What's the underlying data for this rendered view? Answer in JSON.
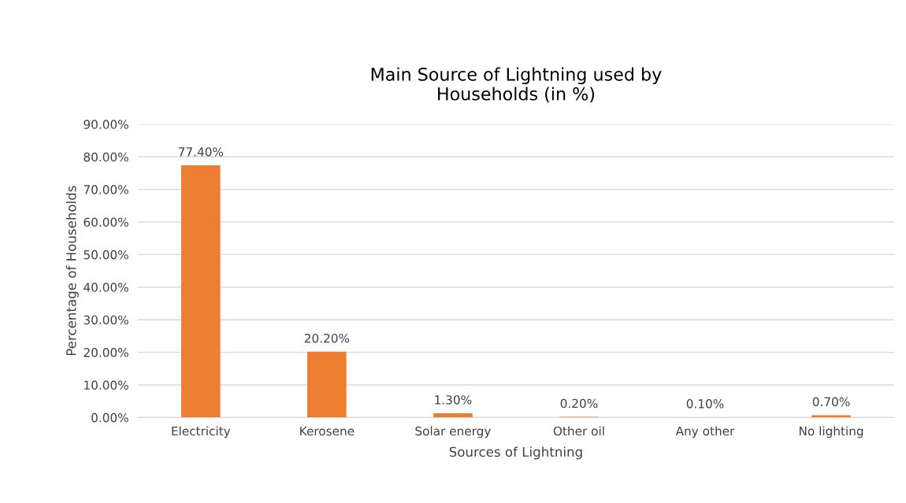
{
  "chart_data": {
    "type": "bar",
    "title": "Main Source of Lightning used by\nHouseholds (in %)",
    "xlabel": "Sources of Lightning",
    "ylabel": "Percentage of Households",
    "categories": [
      "Electricity",
      "Kerosene",
      "Solar energy",
      "Other oil",
      "Any other",
      "No lighting"
    ],
    "values": [
      77.4,
      20.2,
      1.3,
      0.2,
      0.1,
      0.7
    ],
    "value_labels": [
      "77.40%",
      "20.20%",
      "1.30%",
      "0.20%",
      "0.10%",
      "0.70%"
    ],
    "color": "#ed7d31",
    "ylim": [
      0,
      90
    ],
    "yticks": [
      {
        "value": 0,
        "label": "0.00%"
      },
      {
        "value": 10,
        "label": "10.00%"
      },
      {
        "value": 20,
        "label": "20.00%"
      },
      {
        "value": 30,
        "label": "30.00%"
      },
      {
        "value": 40,
        "label": "40.00%"
      },
      {
        "value": 50,
        "label": "50.00%"
      },
      {
        "value": 60,
        "label": "60.00%"
      },
      {
        "value": 70,
        "label": "70.00%"
      },
      {
        "value": 80,
        "label": "80.00%"
      },
      {
        "value": 90,
        "label": "90.00%"
      }
    ],
    "grid": "y",
    "legend": false
  }
}
